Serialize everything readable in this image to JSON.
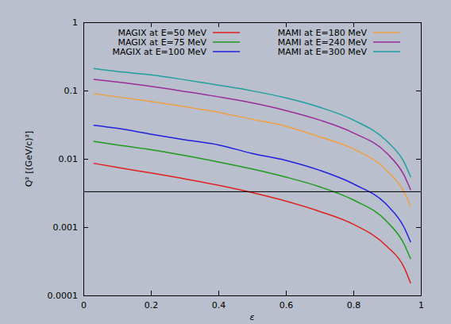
{
  "chart_data": {
    "type": "line",
    "x_label": "ε",
    "y_label": "Q² [(GeV/c)²]",
    "log": "y",
    "grid": false,
    "legend": "top",
    "xlim": [
      0,
      1
    ],
    "xticks": [
      0,
      0.2,
      0.4,
      0.6,
      0.8,
      1
    ],
    "ylim": [
      0.0001,
      1
    ],
    "yticks": [
      0.0001,
      0.001,
      0.01,
      0.1,
      1
    ],
    "x": [
      0.03,
      0.1,
      0.2,
      0.3,
      0.4,
      0.5,
      0.6,
      0.7,
      0.8,
      0.9,
      0.95,
      0.97
    ],
    "series": [
      {
        "name": "MAGIX at E=50 MeV",
        "color": "#e02020",
        "values": [
          0.0086,
          0.0075,
          0.0062,
          0.0051,
          0.0041,
          0.0032,
          0.0024,
          0.0017,
          0.0011,
          0.00052,
          0.00026,
          0.00015
        ]
      },
      {
        "name": "MAGIX at E=75 MeV",
        "color": "#1e9a1e",
        "values": [
          0.018,
          0.016,
          0.0136,
          0.0112,
          0.009,
          0.0071,
          0.0054,
          0.0039,
          0.0025,
          0.0012,
          0.00057,
          0.00034
        ]
      },
      {
        "name": "MAGIX at E=100 MeV",
        "color": "#2020e0",
        "values": [
          0.031,
          0.028,
          0.023,
          0.019,
          0.016,
          0.012,
          0.0095,
          0.0068,
          0.0043,
          0.0021,
          0.001,
          0.0006
        ]
      },
      {
        "name": "MAMI at E=180 MeV",
        "color": "#f0a040",
        "values": [
          0.09,
          0.081,
          0.069,
          0.058,
          0.048,
          0.038,
          0.03,
          0.021,
          0.014,
          0.0067,
          0.0033,
          0.002
        ]
      },
      {
        "name": "MAMI at E=240 MeV",
        "color": "#9b2d9b",
        "values": [
          0.146,
          0.133,
          0.115,
          0.097,
          0.081,
          0.066,
          0.051,
          0.037,
          0.024,
          0.012,
          0.0058,
          0.0035
        ]
      },
      {
        "name": "MAMI at E=300 MeV",
        "color": "#1f9f9f",
        "values": [
          0.21,
          0.19,
          0.17,
          0.144,
          0.12,
          0.099,
          0.078,
          0.057,
          0.037,
          0.018,
          0.009,
          0.0054
        ]
      }
    ],
    "reference_line": {
      "value": 0.0033,
      "color": "#000000"
    }
  }
}
